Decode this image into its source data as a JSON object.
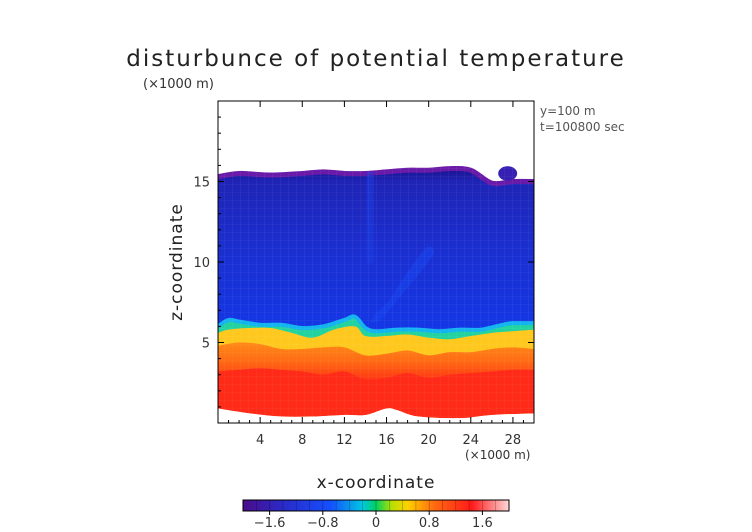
{
  "chart_data": {
    "type": "heatmap",
    "title": "disturbunce of potential temperature",
    "xlabel": "x-coordinate",
    "ylabel": "z-coordinate",
    "x_unit": "(×1000 m)",
    "z_unit": "(×1000 m)",
    "annotations": [
      "y=100 m",
      "t=100800 sec"
    ],
    "xlim": [
      0,
      30
    ],
    "ylim": [
      0,
      20
    ],
    "x_ticks": [
      4,
      8,
      12,
      16,
      20,
      24,
      28
    ],
    "y_ticks": [
      5,
      10,
      15
    ],
    "x_tick_labels": [
      "4",
      "8",
      "12",
      "16",
      "20",
      "24",
      "28"
    ],
    "y_tick_labels": [
      "5",
      "10",
      "15"
    ],
    "colorbar": {
      "range": [
        -2.0,
        2.0
      ],
      "tick_values": [
        -1.6,
        -0.8,
        0,
        0.8,
        1.6
      ],
      "tick_labels": [
        "−1.6",
        "−0.8",
        "0",
        "0.8",
        "1.6"
      ]
    },
    "cloud_top": [
      [
        0,
        15.3
      ],
      [
        2,
        15.5
      ],
      [
        5,
        15.4
      ],
      [
        8,
        15.5
      ],
      [
        10,
        15.6
      ],
      [
        12,
        15.5
      ],
      [
        14,
        15.5
      ],
      [
        16,
        15.6
      ],
      [
        18,
        15.7
      ],
      [
        20,
        15.7
      ],
      [
        22,
        15.8
      ],
      [
        24,
        15.7
      ],
      [
        26,
        14.9
      ],
      [
        28,
        15.0
      ],
      [
        30,
        15.0
      ]
    ],
    "warm_bottom": [
      [
        0,
        0.9
      ],
      [
        3,
        0.6
      ],
      [
        6,
        0.4
      ],
      [
        9,
        0.4
      ],
      [
        12,
        0.5
      ],
      [
        14,
        0.5
      ],
      [
        16,
        0.9
      ],
      [
        17,
        0.8
      ],
      [
        19,
        0.4
      ],
      [
        23,
        0.3
      ],
      [
        26,
        0.5
      ],
      [
        30,
        0.6
      ]
    ],
    "layers": [
      {
        "name": "green",
        "value": 0.0,
        "boundary": [
          [
            0,
            6.0
          ],
          [
            1,
            6.4
          ],
          [
            2,
            6.3
          ],
          [
            4,
            6.1
          ],
          [
            6,
            6.1
          ],
          [
            8,
            5.9
          ],
          [
            10,
            6.0
          ],
          [
            12,
            6.4
          ],
          [
            13,
            6.6
          ],
          [
            14,
            5.9
          ],
          [
            15,
            5.7
          ],
          [
            17,
            5.8
          ],
          [
            19,
            5.8
          ],
          [
            21,
            5.7
          ],
          [
            23,
            5.8
          ],
          [
            25,
            5.8
          ],
          [
            27,
            6.1
          ],
          [
            28,
            6.2
          ],
          [
            30,
            6.2
          ]
        ]
      },
      {
        "name": "yellow",
        "value": 0.8,
        "boundary": [
          [
            0,
            5.6
          ],
          [
            1,
            5.8
          ],
          [
            3,
            5.9
          ],
          [
            5,
            5.9
          ],
          [
            7,
            5.6
          ],
          [
            9,
            5.3
          ],
          [
            11,
            5.8
          ],
          [
            13,
            6.0
          ],
          [
            14,
            5.4
          ],
          [
            16,
            5.4
          ],
          [
            18,
            5.5
          ],
          [
            20,
            5.3
          ],
          [
            22,
            5.2
          ],
          [
            24,
            5.4
          ],
          [
            26,
            5.6
          ],
          [
            28,
            5.7
          ],
          [
            30,
            5.8
          ]
        ]
      },
      {
        "name": "orange",
        "value": 1.2,
        "boundary": [
          [
            0,
            4.8
          ],
          [
            2,
            5.0
          ],
          [
            4,
            4.9
          ],
          [
            6,
            4.6
          ],
          [
            8,
            4.6
          ],
          [
            10,
            4.7
          ],
          [
            12,
            4.7
          ],
          [
            14,
            4.2
          ],
          [
            16,
            4.3
          ],
          [
            18,
            4.5
          ],
          [
            20,
            4.2
          ],
          [
            22,
            4.4
          ],
          [
            24,
            4.4
          ],
          [
            26,
            4.6
          ],
          [
            28,
            4.7
          ],
          [
            30,
            4.6
          ]
        ]
      },
      {
        "name": "red",
        "value": 1.6,
        "boundary": [
          [
            0,
            3.2
          ],
          [
            2,
            3.3
          ],
          [
            4,
            3.4
          ],
          [
            6,
            3.3
          ],
          [
            8,
            3.2
          ],
          [
            10,
            3.0
          ],
          [
            12,
            3.2
          ],
          [
            14,
            2.7
          ],
          [
            16,
            2.8
          ],
          [
            18,
            3.1
          ],
          [
            20,
            2.8
          ],
          [
            22,
            3.0
          ],
          [
            24,
            3.1
          ],
          [
            26,
            3.2
          ],
          [
            28,
            3.3
          ],
          [
            30,
            3.3
          ]
        ]
      }
    ],
    "features": [
      {
        "name": "vertical-streak",
        "x": [
          14.1,
          14.8
        ],
        "z": [
          9.9,
          15.6
        ],
        "value": -1.0
      },
      {
        "name": "plume",
        "points": [
          [
            14.5,
            6.2
          ],
          [
            15.6,
            6.5
          ],
          [
            17.5,
            8.0
          ],
          [
            19.5,
            9.6
          ],
          [
            20.5,
            10.6
          ],
          [
            19.8,
            10.9
          ],
          [
            18.0,
            9.4
          ],
          [
            16.2,
            7.6
          ],
          [
            14.8,
            6.7
          ]
        ],
        "value": -0.9
      },
      {
        "name": "bubble",
        "center": [
          27.5,
          15.5
        ],
        "radius": [
          0.9,
          0.45
        ],
        "value": -1.6
      }
    ]
  }
}
